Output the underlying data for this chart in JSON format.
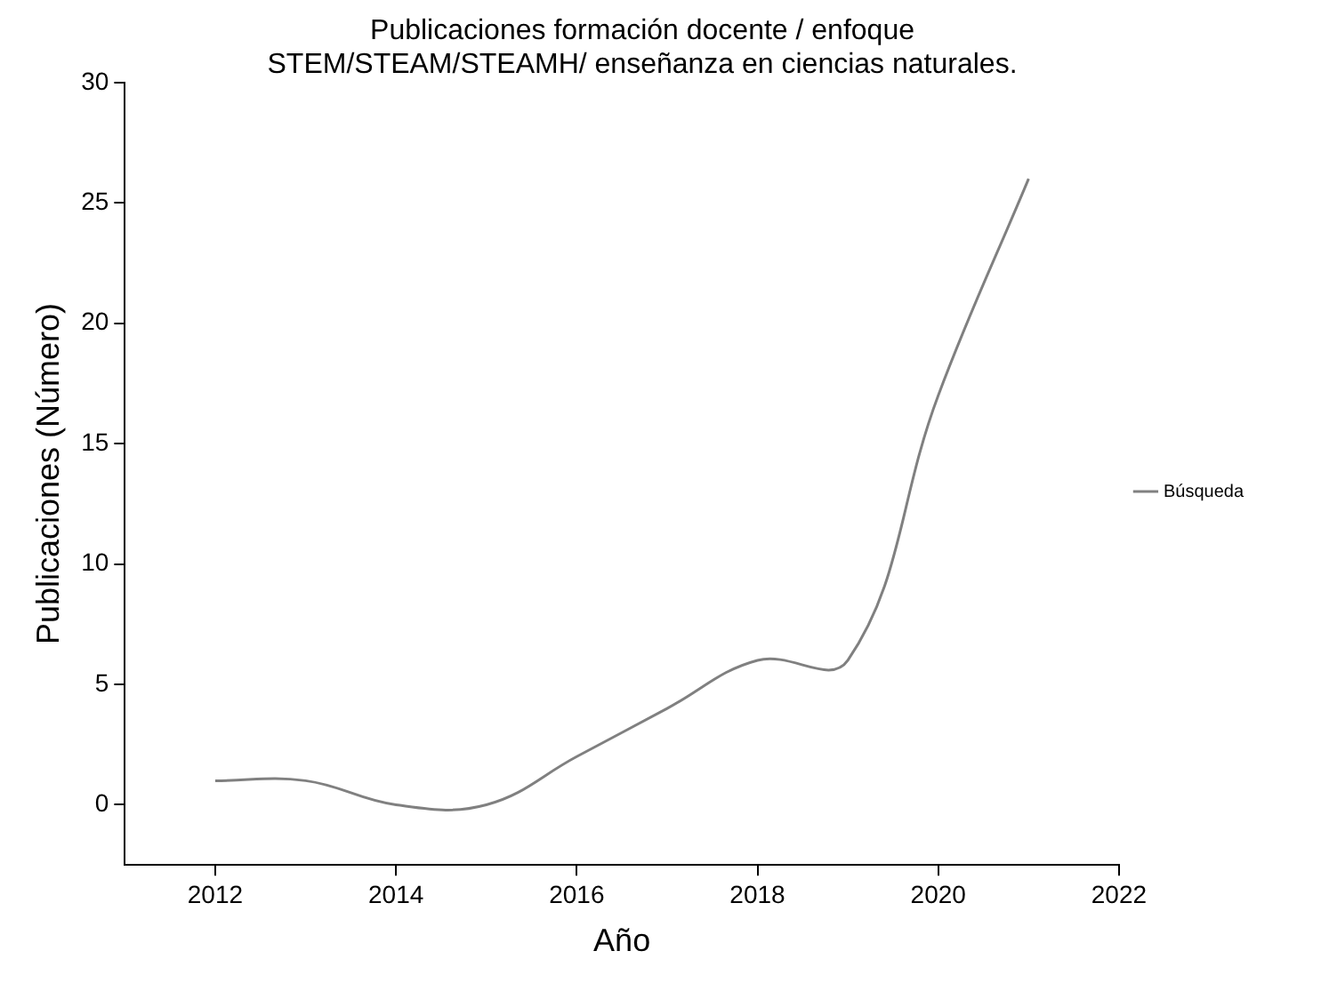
{
  "chart_data": {
    "type": "line",
    "title": "Publicaciones formación docente / enfoque STEM/STEAM/STEAMH/ enseñanza en ciencias naturales.",
    "xlabel": "Año",
    "ylabel": "Publicaciones (Número)",
    "x": [
      2012,
      2013,
      2014,
      2015,
      2016,
      2017,
      2018,
      2019,
      2020,
      2021
    ],
    "series": [
      {
        "name": "Búsqueda",
        "color": "#808080",
        "values": [
          1,
          1,
          0,
          0,
          2,
          4,
          6,
          6,
          17,
          26
        ]
      }
    ],
    "xlim": [
      2011,
      2022
    ],
    "xticks": [
      2012,
      2014,
      2016,
      2018,
      2020,
      2022
    ],
    "ylim": [
      -2.5,
      30
    ],
    "yticks": [
      0,
      5,
      10,
      15,
      20,
      25,
      30
    ],
    "grid": false,
    "legend": "right",
    "marker": "none",
    "line_style": "solid"
  }
}
